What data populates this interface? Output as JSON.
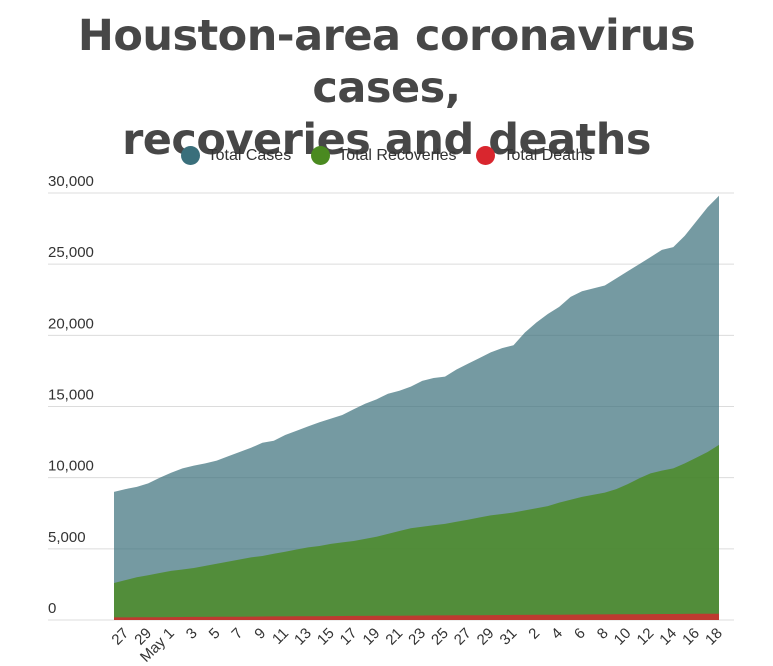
{
  "title": {
    "line1": "Houston-area coronavirus cases,",
    "line2": "recoveries and deaths"
  },
  "legend": [
    {
      "label": "Total Cases",
      "color": "#3a6f7b"
    },
    {
      "label": "Total Recoveries",
      "color": "#4a8a20"
    },
    {
      "label": "Total Deaths",
      "color": "#d9262e"
    }
  ],
  "chart_data": {
    "type": "area",
    "title": "Houston-area coronavirus cases, recoveries and deaths",
    "xlabel": "",
    "ylabel": "",
    "ylim": [
      0,
      30000
    ],
    "yticks": [
      0,
      5000,
      10000,
      15000,
      20000,
      25000,
      30000
    ],
    "ytick_labels": [
      "0",
      "5,000",
      "10,000",
      "15,000",
      "20,000",
      "25,000",
      "30,000"
    ],
    "grid": true,
    "legend_position": "top-center",
    "xtick_labels": [
      "27",
      "29",
      "May 1",
      "3",
      "5",
      "7",
      "9",
      "11",
      "13",
      "15",
      "17",
      "19",
      "21",
      "23",
      "25",
      "27",
      "29",
      "31",
      "2",
      "4",
      "6",
      "8",
      "10",
      "12",
      "14",
      "16",
      "18"
    ],
    "x": [
      "Apr 26",
      "Apr 27",
      "Apr 28",
      "Apr 29",
      "Apr 30",
      "May 1",
      "May 2",
      "May 3",
      "May 4",
      "May 5",
      "May 6",
      "May 7",
      "May 8",
      "May 9",
      "May 10",
      "May 11",
      "May 12",
      "May 13",
      "May 14",
      "May 15",
      "May 16",
      "May 17",
      "May 18",
      "May 19",
      "May 20",
      "May 21",
      "May 22",
      "May 23",
      "May 24",
      "May 25",
      "May 26",
      "May 27",
      "May 28",
      "May 29",
      "May 30",
      "May 31",
      "Jun 1",
      "Jun 2",
      "Jun 3",
      "Jun 4",
      "Jun 5",
      "Jun 6",
      "Jun 7",
      "Jun 8",
      "Jun 9",
      "Jun 10",
      "Jun 11",
      "Jun 12",
      "Jun 13",
      "Jun 14",
      "Jun 15",
      "Jun 16",
      "Jun 17",
      "Jun 18"
    ],
    "series": [
      {
        "name": "Total Cases",
        "color": "#3a6f7b",
        "opacity": 0.7,
        "values": [
          9000,
          9200,
          9350,
          9600,
          10000,
          10350,
          10650,
          10850,
          11000,
          11200,
          11500,
          11800,
          12100,
          12450,
          12600,
          13000,
          13300,
          13600,
          13900,
          14150,
          14400,
          14800,
          15200,
          15500,
          15900,
          16100,
          16400,
          16800,
          17000,
          17100,
          17600,
          18000,
          18400,
          18800,
          19100,
          19300,
          20200,
          20900,
          21500,
          22000,
          22700,
          23100,
          23300,
          23500,
          24000,
          24500,
          25000,
          25500,
          26000,
          26200,
          27000,
          28000,
          29000,
          29800
        ]
      },
      {
        "name": "Total Recoveries",
        "color": "#4a8a20",
        "opacity": 0.8,
        "values": [
          2600,
          2800,
          3000,
          3150,
          3300,
          3450,
          3550,
          3650,
          3800,
          3950,
          4100,
          4250,
          4400,
          4500,
          4650,
          4800,
          4950,
          5100,
          5200,
          5350,
          5450,
          5550,
          5700,
          5850,
          6050,
          6250,
          6450,
          6550,
          6650,
          6750,
          6900,
          7050,
          7200,
          7350,
          7450,
          7550,
          7700,
          7850,
          8000,
          8250,
          8450,
          8650,
          8800,
          8950,
          9200,
          9550,
          9950,
          10300,
          10500,
          10650,
          11000,
          11400,
          11800,
          12300
        ]
      },
      {
        "name": "Total Deaths",
        "color": "#d9262e",
        "opacity": 0.8,
        "values": [
          180,
          185,
          190,
          195,
          200,
          205,
          210,
          215,
          220,
          225,
          230,
          235,
          240,
          245,
          250,
          255,
          260,
          265,
          270,
          275,
          280,
          285,
          290,
          295,
          300,
          305,
          310,
          315,
          320,
          325,
          330,
          335,
          340,
          345,
          350,
          355,
          360,
          365,
          370,
          375,
          380,
          385,
          390,
          395,
          400,
          405,
          410,
          415,
          420,
          425,
          430,
          435,
          440,
          445
        ]
      }
    ]
  }
}
